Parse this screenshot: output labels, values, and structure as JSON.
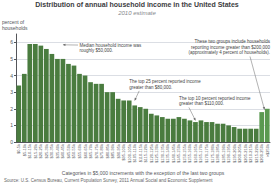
{
  "chart_data": {
    "type": "bar",
    "title": "Distribution of annual household income in the United States",
    "subtitle": "2010 estimate",
    "xlabel": "Categories in $5,000 increments with the exception of the last two groups",
    "ylabel": "percent of\nhouseholds",
    "source": "Source: U.S. Census Bureau, Current Population Survey, 2011 Annual Social and Economic Supplement",
    "annotations": [
      "Median household income was\nroughly $50,000.",
      "The top 25 percent reported income\ngreater than $80,000.",
      "The top 10 percent reported income\ngreater than $110,000.",
      "These two groups include households\nreporting income greater than $200,000\n(approximately 4 percent of households)."
    ],
    "categories": [
      "$0-5k",
      "$5-10k",
      "$10-15k",
      "$15-20k",
      "$20-25k",
      "$25-30k",
      "$30-35k",
      "$35-40k",
      "$40-45k",
      "$45-50k",
      "$50-55k",
      "$55-60k",
      "$60-65k",
      "$65-70k",
      "$70-75k",
      "$75-80k",
      "$80-85k",
      "$85-90k",
      "$90-95k",
      "$95-100k",
      "$100-105k",
      "$105-110k",
      "$110-115k",
      "$115-120k",
      "$120-125k",
      "$125-130k",
      "$130-135k",
      "$135-140k",
      "$140-145k",
      "$145-150k",
      "$150-155k",
      "$155-160k",
      "$160-165k",
      "$165-170k",
      "$170-175k",
      "$175-180k",
      "$180-185k",
      "$185-190k",
      "$190-195k",
      "$195-200k",
      "$200-205k",
      "$205-210k",
      "$210-215k",
      "$215-220k",
      "$200-250k",
      ">$250k"
    ],
    "values": [
      3.4,
      4.1,
      5.9,
      5.9,
      5.8,
      5.6,
      5.3,
      5.0,
      5.0,
      4.7,
      4.6,
      4.1,
      4.0,
      3.6,
      3.5,
      3.5,
      3.0,
      3.0,
      2.6,
      2.5,
      2.5,
      2.2,
      2.1,
      2.0,
      1.7,
      1.6,
      1.5,
      1.4,
      1.4,
      1.5,
      1.4,
      1.3,
      1.2,
      1.3,
      1.2,
      1.2,
      1.1,
      1.1,
      1.0,
      0.9,
      0.8,
      0.8,
      0.8,
      0.8,
      1.8,
      2.0
    ],
    "colors": [
      "#4a7c3f",
      "#4a7c3f",
      "#4a7c3f",
      "#4a7c3f",
      "#4a7c3f",
      "#4a7c3f",
      "#4a7c3f",
      "#4a7c3f",
      "#4a7c3f",
      "#4a7c3f",
      "#4a7c3f",
      "#4a7c3f",
      "#4a7c3f",
      "#4a7c3f",
      "#4a7c3f",
      "#4a7c3f",
      "#4a7c3f",
      "#4a7c3f",
      "#4a7c3f",
      "#4a7c3f",
      "#4a7c3f",
      "#4a7c3f",
      "#4a7c3f",
      "#4a7c3f",
      "#4a7c3f",
      "#4a7c3f",
      "#4a7c3f",
      "#4a7c3f",
      "#4a7c3f",
      "#4a7c3f",
      "#4a7c3f",
      "#4a7c3f",
      "#4a7c3f",
      "#4a7c3f",
      "#4a7c3f",
      "#4a7c3f",
      "#4a7c3f",
      "#4a7c3f",
      "#4a7c3f",
      "#4a7c3f",
      "#4a7c3f",
      "#4a7c3f",
      "#4a7c3f",
      "#4a7c3f",
      "#5a9950",
      "#5a9950"
    ],
    "ylim": [
      0,
      6.5
    ],
    "yticks": [
      0,
      1,
      2,
      3,
      4,
      5,
      6
    ],
    "grid": true
  }
}
